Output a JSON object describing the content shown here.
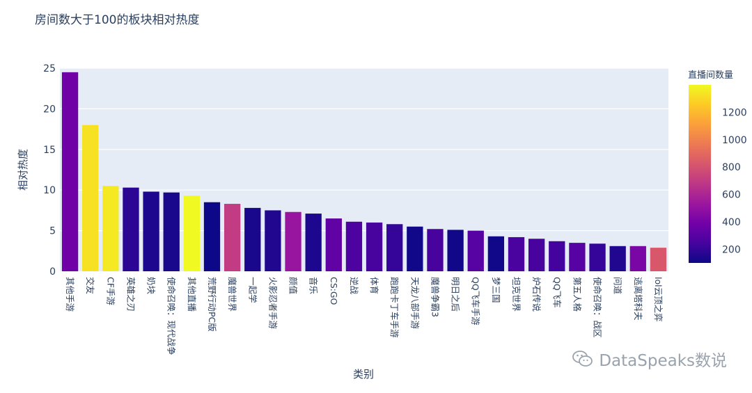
{
  "chart_data": {
    "type": "bar",
    "title": "房间数大于100的板块相对热度",
    "xlabel": "类别",
    "ylabel": "相对热度",
    "ylim": [
      0,
      25
    ],
    "yticks": [
      0,
      5,
      10,
      15,
      20,
      25
    ],
    "grid": true,
    "categories": [
      "其他手游",
      "交友",
      "CF手游",
      "英雄之刃",
      "奶块",
      "使命召唤：现代战争",
      "其他直播",
      "荒野行动PC版",
      "魔兽世界",
      "一起学",
      "火影忍者手游",
      "颜值",
      "音乐",
      "CS:GO",
      "逆战",
      "体育",
      "跑跑卡丁车手游",
      "天龙八部手游",
      "魔兽争霸3",
      "明日之后",
      "QQ飞车手游",
      "梦三国",
      "坦克世界",
      "炉石传说",
      "QQ飞车",
      "第五人格",
      "使命召唤：战区",
      "问道",
      "逃离塔科夫",
      "lol云顶之弈"
    ],
    "values": [
      24.5,
      18.0,
      10.5,
      10.3,
      9.8,
      9.7,
      9.3,
      8.5,
      8.3,
      7.8,
      7.5,
      7.3,
      7.1,
      6.5,
      6.1,
      6.0,
      5.8,
      5.5,
      5.2,
      5.1,
      5.0,
      4.3,
      4.2,
      4.0,
      3.7,
      3.5,
      3.4,
      3.1,
      3.1,
      2.9
    ],
    "color_values": [
      380,
      1330,
      1350,
      180,
      140,
      130,
      1400,
      100,
      700,
      130,
      150,
      520,
      140,
      330,
      270,
      250,
      200,
      110,
      250,
      110,
      300,
      110,
      260,
      250,
      240,
      300,
      200,
      150,
      420,
      820
    ],
    "colorbar": {
      "title": "直播间数量",
      "ticks": [
        200,
        400,
        600,
        800,
        1000,
        1200
      ],
      "range": [
        100,
        1400
      ],
      "colorscale": [
        "#0d0887",
        "#46039f",
        "#7201a8",
        "#9c179e",
        "#bd3786",
        "#d8576b",
        "#ed7953",
        "#fb9f3a",
        "#fdca26",
        "#f0f921"
      ]
    }
  },
  "watermark": {
    "text": "DataSpeaks数说"
  }
}
